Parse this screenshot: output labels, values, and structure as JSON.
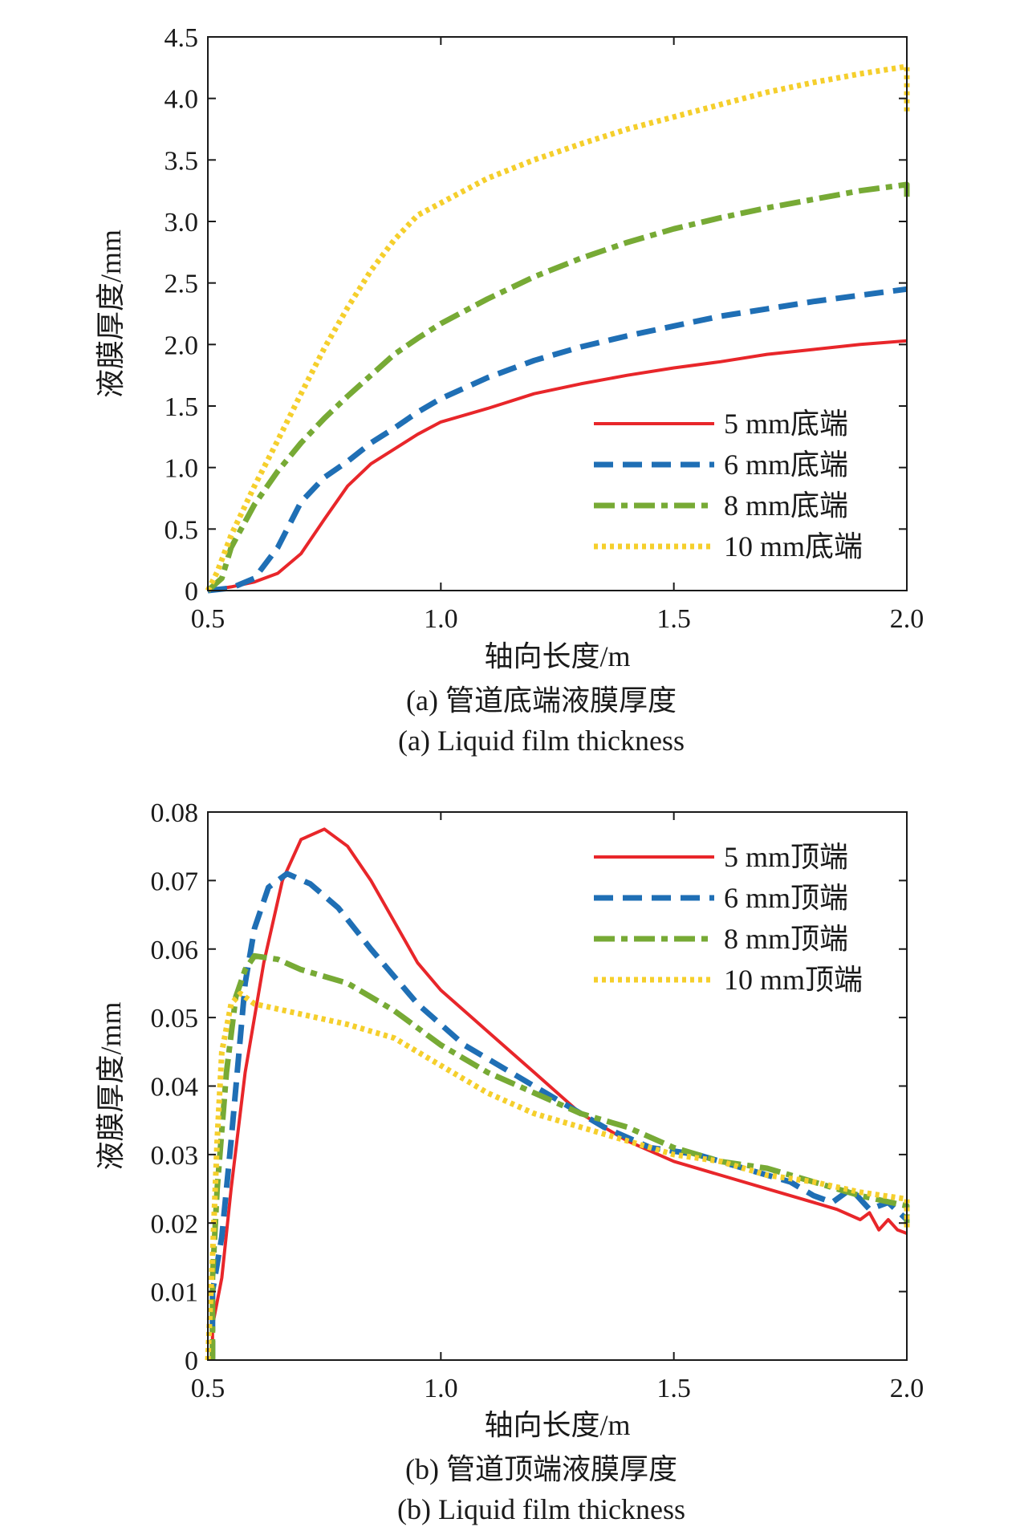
{
  "chart_data": [
    {
      "type": "line",
      "xlabel": "轴向长度/m",
      "ylabel": "液膜厚度/mm",
      "caption_cn": "(a) 管道底端液膜厚度",
      "caption_en": "(a) Liquid film thickness",
      "xlim": [
        0.5,
        2.0
      ],
      "ylim": [
        0,
        4.5
      ],
      "xticks": [
        "0.5",
        "1.0",
        "1.5",
        "2.0"
      ],
      "yticks": [
        "0",
        "0.5",
        "1.0",
        "1.5",
        "2.0",
        "2.5",
        "3.0",
        "3.5",
        "4.0",
        "4.5"
      ],
      "grid": false,
      "legend_position": "bottom-right",
      "series": [
        {
          "name": "5 mm底端",
          "color": "#e8262a",
          "style": "solid",
          "points": [
            [
              0.5,
              0
            ],
            [
              0.55,
              0.03
            ],
            [
              0.6,
              0.07
            ],
            [
              0.65,
              0.14
            ],
            [
              0.7,
              0.3
            ],
            [
              0.75,
              0.58
            ],
            [
              0.8,
              0.85
            ],
            [
              0.85,
              1.03
            ],
            [
              0.9,
              1.15
            ],
            [
              0.95,
              1.27
            ],
            [
              1.0,
              1.37
            ],
            [
              1.1,
              1.48
            ],
            [
              1.2,
              1.6
            ],
            [
              1.3,
              1.68
            ],
            [
              1.4,
              1.75
            ],
            [
              1.5,
              1.81
            ],
            [
              1.6,
              1.86
            ],
            [
              1.7,
              1.92
            ],
            [
              1.8,
              1.96
            ],
            [
              1.9,
              2.0
            ],
            [
              2.0,
              2.03
            ]
          ]
        },
        {
          "name": "6 mm底端",
          "color": "#1f6fb5",
          "style": "dashed",
          "points": [
            [
              0.5,
              0
            ],
            [
              0.55,
              0.02
            ],
            [
              0.6,
              0.1
            ],
            [
              0.65,
              0.35
            ],
            [
              0.7,
              0.72
            ],
            [
              0.75,
              0.92
            ],
            [
              0.8,
              1.05
            ],
            [
              0.85,
              1.2
            ],
            [
              0.9,
              1.32
            ],
            [
              0.95,
              1.45
            ],
            [
              1.0,
              1.56
            ],
            [
              1.1,
              1.73
            ],
            [
              1.2,
              1.87
            ],
            [
              1.3,
              1.98
            ],
            [
              1.4,
              2.07
            ],
            [
              1.5,
              2.15
            ],
            [
              1.6,
              2.23
            ],
            [
              1.7,
              2.29
            ],
            [
              1.8,
              2.35
            ],
            [
              1.9,
              2.4
            ],
            [
              2.0,
              2.45
            ]
          ]
        },
        {
          "name": "8 mm底端",
          "color": "#77aa35",
          "style": "dashdot",
          "points": [
            [
              0.5,
              0
            ],
            [
              0.53,
              0.1
            ],
            [
              0.55,
              0.35
            ],
            [
              0.6,
              0.7
            ],
            [
              0.65,
              0.97
            ],
            [
              0.7,
              1.2
            ],
            [
              0.75,
              1.4
            ],
            [
              0.8,
              1.58
            ],
            [
              0.85,
              1.75
            ],
            [
              0.9,
              1.92
            ],
            [
              0.95,
              2.05
            ],
            [
              1.0,
              2.17
            ],
            [
              1.1,
              2.37
            ],
            [
              1.2,
              2.55
            ],
            [
              1.3,
              2.7
            ],
            [
              1.4,
              2.83
            ],
            [
              1.5,
              2.94
            ],
            [
              1.6,
              3.03
            ],
            [
              1.7,
              3.11
            ],
            [
              1.8,
              3.18
            ],
            [
              1.9,
              3.25
            ],
            [
              2.0,
              3.3
            ],
            [
              2.0,
              3.2
            ]
          ]
        },
        {
          "name": "10 mm底端",
          "color": "#f5cf2c",
          "style": "dotted",
          "points": [
            [
              0.5,
              0
            ],
            [
              0.52,
              0.15
            ],
            [
              0.55,
              0.45
            ],
            [
              0.6,
              0.85
            ],
            [
              0.65,
              1.22
            ],
            [
              0.7,
              1.6
            ],
            [
              0.75,
              1.97
            ],
            [
              0.8,
              2.3
            ],
            [
              0.85,
              2.6
            ],
            [
              0.9,
              2.85
            ],
            [
              0.95,
              3.05
            ],
            [
              1.0,
              3.15
            ],
            [
              1.1,
              3.35
            ],
            [
              1.2,
              3.5
            ],
            [
              1.3,
              3.63
            ],
            [
              1.4,
              3.75
            ],
            [
              1.5,
              3.85
            ],
            [
              1.6,
              3.95
            ],
            [
              1.7,
              4.05
            ],
            [
              1.8,
              4.13
            ],
            [
              1.9,
              4.2
            ],
            [
              2.0,
              4.26
            ],
            [
              2.0,
              3.88
            ]
          ]
        }
      ]
    },
    {
      "type": "line",
      "xlabel": "轴向长度/m",
      "ylabel": "液膜厚度/mm",
      "caption_cn": "(b) 管道顶端液膜厚度",
      "caption_en": "(b) Liquid film thickness",
      "xlim": [
        0.5,
        2.0
      ],
      "ylim": [
        0,
        0.08
      ],
      "xticks": [
        "0.5",
        "1.0",
        "1.5",
        "2.0"
      ],
      "yticks": [
        "0",
        "0.01",
        "0.02",
        "0.03",
        "0.04",
        "0.05",
        "0.06",
        "0.07",
        "0.08"
      ],
      "grid": false,
      "legend_position": "top-right",
      "series": [
        {
          "name": "5 mm顶端",
          "color": "#e8262a",
          "style": "solid",
          "points": [
            [
              0.51,
              0
            ],
            [
              0.51,
              0.005
            ],
            [
              0.53,
              0.012
            ],
            [
              0.55,
              0.025
            ],
            [
              0.58,
              0.042
            ],
            [
              0.62,
              0.058
            ],
            [
              0.66,
              0.07
            ],
            [
              0.7,
              0.076
            ],
            [
              0.75,
              0.0775
            ],
            [
              0.8,
              0.075
            ],
            [
              0.85,
              0.07
            ],
            [
              0.9,
              0.064
            ],
            [
              0.95,
              0.058
            ],
            [
              1.0,
              0.054
            ],
            [
              1.1,
              0.048
            ],
            [
              1.2,
              0.042
            ],
            [
              1.3,
              0.036
            ],
            [
              1.4,
              0.032
            ],
            [
              1.5,
              0.029
            ],
            [
              1.6,
              0.027
            ],
            [
              1.7,
              0.025
            ],
            [
              1.8,
              0.023
            ],
            [
              1.85,
              0.022
            ],
            [
              1.9,
              0.0205
            ],
            [
              1.92,
              0.0215
            ],
            [
              1.94,
              0.019
            ],
            [
              1.96,
              0.0205
            ],
            [
              1.98,
              0.019
            ],
            [
              2.0,
              0.0185
            ]
          ]
        },
        {
          "name": "6 mm顶端",
          "color": "#1f6fb5",
          "style": "dashed",
          "points": [
            [
              0.51,
              0
            ],
            [
              0.51,
              0.01
            ],
            [
              0.53,
              0.018
            ],
            [
              0.55,
              0.032
            ],
            [
              0.58,
              0.055
            ],
            [
              0.6,
              0.063
            ],
            [
              0.63,
              0.069
            ],
            [
              0.67,
              0.071
            ],
            [
              0.72,
              0.0695
            ],
            [
              0.78,
              0.066
            ],
            [
              0.85,
              0.06
            ],
            [
              0.95,
              0.052
            ],
            [
              1.05,
              0.046
            ],
            [
              1.15,
              0.042
            ],
            [
              1.25,
              0.038
            ],
            [
              1.35,
              0.034
            ],
            [
              1.45,
              0.031
            ],
            [
              1.55,
              0.03
            ],
            [
              1.65,
              0.028
            ],
            [
              1.75,
              0.026
            ],
            [
              1.8,
              0.024
            ],
            [
              1.84,
              0.023
            ],
            [
              1.88,
              0.025
            ],
            [
              1.92,
              0.022
            ],
            [
              1.96,
              0.023
            ],
            [
              2.0,
              0.0205
            ]
          ]
        },
        {
          "name": "8 mm顶端",
          "color": "#77aa35",
          "style": "dashdot",
          "points": [
            [
              0.51,
              0
            ],
            [
              0.51,
              0.012
            ],
            [
              0.52,
              0.025
            ],
            [
              0.54,
              0.042
            ],
            [
              0.56,
              0.053
            ],
            [
              0.58,
              0.057
            ],
            [
              0.6,
              0.059
            ],
            [
              0.65,
              0.0585
            ],
            [
              0.7,
              0.057
            ],
            [
              0.8,
              0.055
            ],
            [
              0.9,
              0.051
            ],
            [
              1.0,
              0.046
            ],
            [
              1.1,
              0.042
            ],
            [
              1.2,
              0.039
            ],
            [
              1.3,
              0.036
            ],
            [
              1.4,
              0.034
            ],
            [
              1.5,
              0.031
            ],
            [
              1.6,
              0.029
            ],
            [
              1.7,
              0.028
            ],
            [
              1.8,
              0.026
            ],
            [
              1.9,
              0.024
            ],
            [
              2.0,
              0.0225
            ],
            [
              2.0,
              0.02
            ]
          ]
        },
        {
          "name": "10 mm顶端",
          "color": "#f5cf2c",
          "style": "dotted",
          "points": [
            [
              0.5,
              0
            ],
            [
              0.51,
              0.015
            ],
            [
              0.52,
              0.032
            ],
            [
              0.53,
              0.045
            ],
            [
              0.55,
              0.052
            ],
            [
              0.57,
              0.0535
            ],
            [
              0.6,
              0.052
            ],
            [
              0.7,
              0.0505
            ],
            [
              0.8,
              0.049
            ],
            [
              0.9,
              0.047
            ],
            [
              1.0,
              0.043
            ],
            [
              1.1,
              0.039
            ],
            [
              1.2,
              0.036
            ],
            [
              1.3,
              0.034
            ],
            [
              1.4,
              0.032
            ],
            [
              1.5,
              0.03
            ],
            [
              1.6,
              0.029
            ],
            [
              1.7,
              0.027
            ],
            [
              1.8,
              0.026
            ],
            [
              1.9,
              0.0245
            ],
            [
              2.0,
              0.0235
            ],
            [
              2.0,
              0.019
            ]
          ]
        }
      ]
    }
  ]
}
